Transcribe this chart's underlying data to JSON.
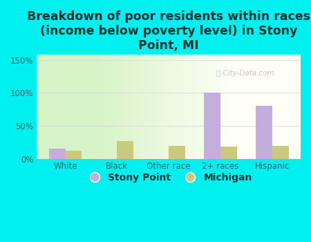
{
  "title": "Breakdown of poor residents within races\n(income below poverty level) in Stony\nPoint, MI",
  "categories": [
    "White",
    "Black",
    "Other race",
    "2+ races",
    "Hispanic"
  ],
  "stony_point": [
    15,
    0,
    0,
    100,
    80
  ],
  "michigan": [
    12,
    27,
    19,
    18,
    20
  ],
  "stony_point_color": "#c4aedd",
  "michigan_color": "#c8cc7a",
  "background_color": "#00f0f0",
  "yticks": [
    0,
    50,
    100,
    150
  ],
  "ytick_labels": [
    "0%",
    "50%",
    "100%",
    "150%"
  ],
  "ylim": [
    0,
    158
  ],
  "bar_width": 0.32,
  "title_fontsize": 12.5,
  "legend_fontsize": 10,
  "tick_fontsize": 8.5,
  "title_color": "#003333",
  "tick_color": "#336666",
  "watermark_color": "#aaaaaa",
  "grid_color": "#dddddd"
}
